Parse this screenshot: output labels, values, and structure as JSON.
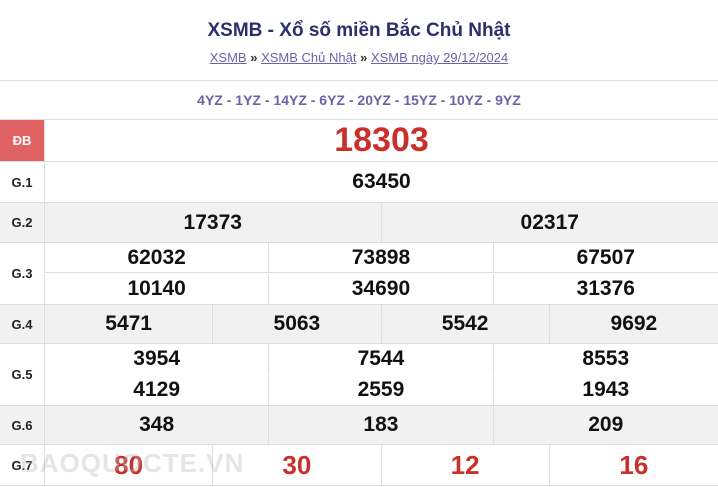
{
  "header": {
    "title": "XSMB - Xổ số miền Bắc Chủ Nhật",
    "breadcrumb": [
      "XSMB",
      "XSMB Chủ Nhật",
      "XSMB ngày 29/12/2024"
    ],
    "separator": "»"
  },
  "codes": "4YZ - 1YZ - 14YZ - 6YZ - 20YZ - 15YZ - 10YZ - 9YZ",
  "prizes": {
    "db": {
      "label": "ĐB",
      "values": [
        "18303"
      ]
    },
    "g1": {
      "label": "G.1",
      "values": [
        "63450"
      ]
    },
    "g2": {
      "label": "G.2",
      "values": [
        "17373",
        "02317"
      ]
    },
    "g3": {
      "label": "G.3",
      "values": [
        "62032",
        "73898",
        "67507",
        "10140",
        "34690",
        "31376"
      ]
    },
    "g4": {
      "label": "G.4",
      "values": [
        "5471",
        "5063",
        "5542",
        "9692"
      ]
    },
    "g5": {
      "label": "G.5",
      "values": [
        "3954",
        "7544",
        "8553",
        "4129",
        "2559",
        "1943"
      ]
    },
    "g6": {
      "label": "G.6",
      "values": [
        "348",
        "183",
        "209"
      ]
    },
    "g7": {
      "label": "G.7",
      "values": [
        "80",
        "30",
        "12",
        "16"
      ]
    }
  },
  "watermark": "BAOQUOCTE.VN",
  "colors": {
    "accent_red": "#c9302c",
    "db_label_bg": "#e06262",
    "link": "#6a63a8"
  }
}
